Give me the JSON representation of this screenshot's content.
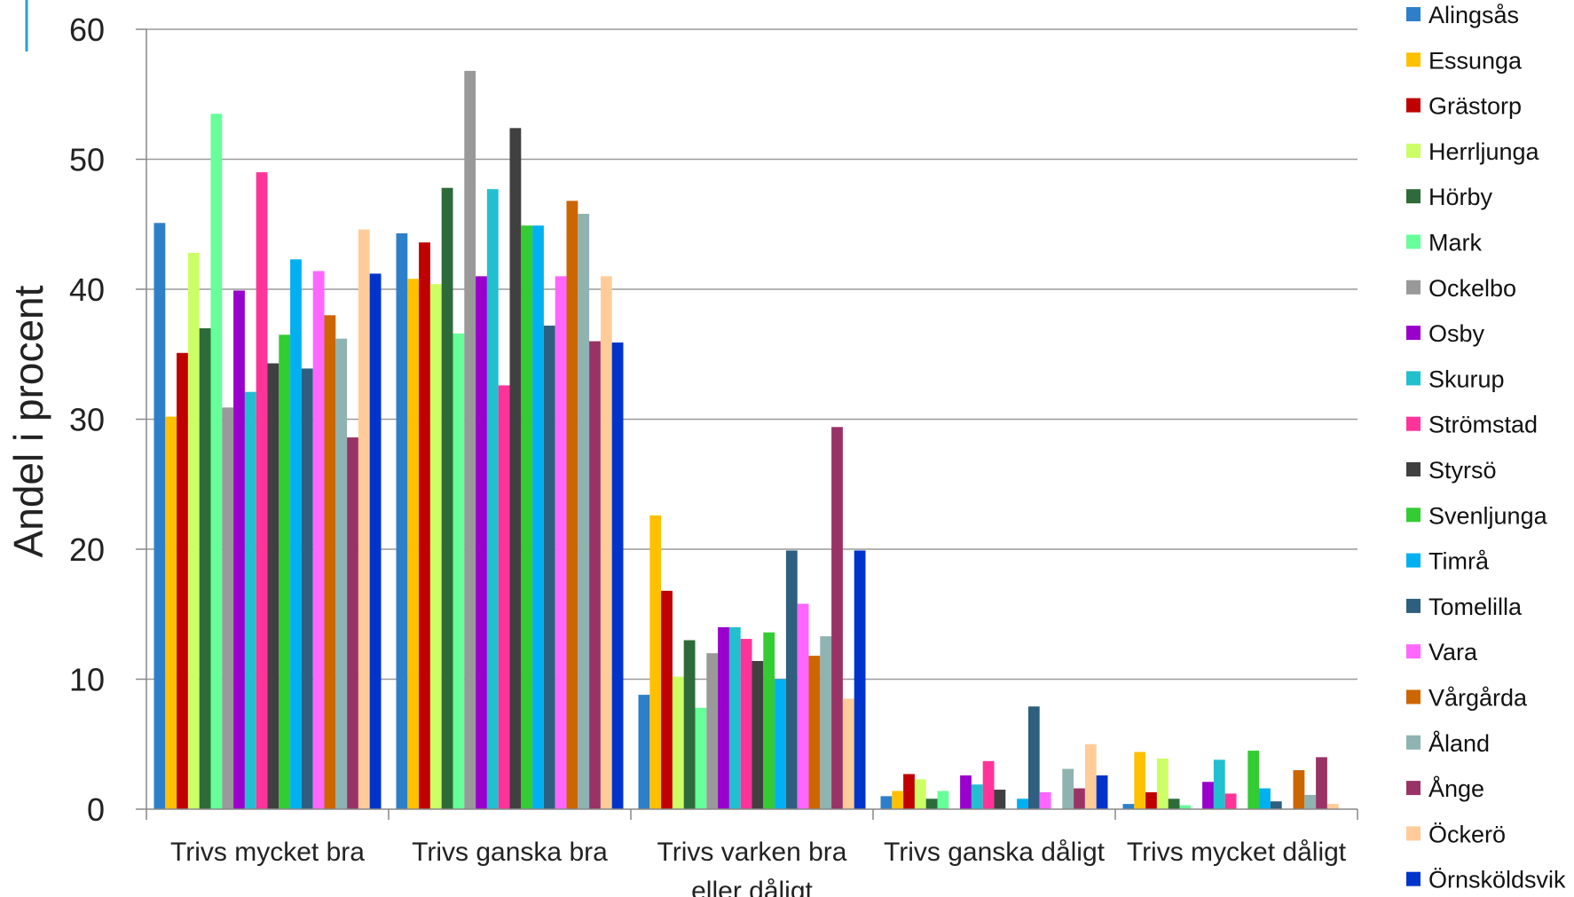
{
  "chart_data": {
    "type": "bar",
    "title": "",
    "xlabel": "",
    "ylabel": "Andel i procent",
    "ylim": [
      0,
      60
    ],
    "yticks": [
      0,
      10,
      20,
      30,
      40,
      50,
      60
    ],
    "grid": true,
    "legend_position": "right",
    "categories": [
      [
        "Trivs mycket bra"
      ],
      [
        "Trivs ganska bra"
      ],
      [
        "Trivs varken bra",
        "eller dåligt"
      ],
      [
        "Trivs ganska dåligt"
      ],
      [
        "Trivs mycket dåligt"
      ]
    ],
    "series": [
      {
        "name": "Alingsås",
        "color": "#2e7fc9",
        "values": [
          45.1,
          44.3,
          8.8,
          1.0,
          0.4
        ]
      },
      {
        "name": "Essunga",
        "color": "#ffc000",
        "values": [
          30.2,
          40.8,
          22.6,
          1.4,
          4.4
        ]
      },
      {
        "name": "Grästorp",
        "color": "#c00000",
        "values": [
          35.1,
          43.6,
          16.8,
          2.7,
          1.3
        ]
      },
      {
        "name": "Herrljunga",
        "color": "#ccff66",
        "values": [
          42.8,
          40.4,
          10.2,
          2.3,
          3.9
        ]
      },
      {
        "name": "Hörby",
        "color": "#2e6b3a",
        "values": [
          37.0,
          47.8,
          13.0,
          0.8,
          0.8
        ]
      },
      {
        "name": "Mark",
        "color": "#66ff99",
        "values": [
          53.5,
          36.6,
          7.8,
          1.4,
          0.3
        ]
      },
      {
        "name": "Ockelbo",
        "color": "#999999",
        "values": [
          30.9,
          56.8,
          12.0,
          0.0,
          0.0
        ]
      },
      {
        "name": "Osby",
        "color": "#9900cc",
        "values": [
          39.9,
          41.0,
          14.0,
          2.6,
          2.1
        ]
      },
      {
        "name": "Skurup",
        "color": "#22bfcf",
        "values": [
          32.1,
          47.7,
          14.0,
          1.9,
          3.8
        ]
      },
      {
        "name": "Strömstad",
        "color": "#ff3399",
        "values": [
          49.0,
          32.6,
          13.1,
          3.7,
          1.2
        ]
      },
      {
        "name": "Styrsö",
        "color": "#404040",
        "values": [
          34.3,
          52.4,
          11.4,
          1.5,
          0.0
        ]
      },
      {
        "name": "Svenljunga",
        "color": "#33cc33",
        "values": [
          36.5,
          44.9,
          13.6,
          0.0,
          4.5
        ]
      },
      {
        "name": "Timrå",
        "color": "#00b0f0",
        "values": [
          42.3,
          44.9,
          10.0,
          0.8,
          1.6
        ]
      },
      {
        "name": "Tomelilla",
        "color": "#2e5f7f",
        "values": [
          33.9,
          37.2,
          19.9,
          7.9,
          0.6
        ]
      },
      {
        "name": "Vara",
        "color": "#ff66ff",
        "values": [
          41.4,
          41.0,
          15.8,
          1.3,
          0.0
        ]
      },
      {
        "name": "Vårgårda",
        "color": "#cc6600",
        "values": [
          38.0,
          46.8,
          11.8,
          0.0,
          3.0
        ]
      },
      {
        "name": "Åland",
        "color": "#8fb3b0",
        "values": [
          36.2,
          45.8,
          13.3,
          3.1,
          1.1
        ]
      },
      {
        "name": "Ånge",
        "color": "#993366",
        "values": [
          28.6,
          36.0,
          29.4,
          1.6,
          4.0
        ]
      },
      {
        "name": "Öckerö",
        "color": "#ffcc99",
        "values": [
          44.6,
          41.0,
          8.5,
          5.0,
          0.4
        ]
      },
      {
        "name": "Örnsköldsvik",
        "color": "#0033cc",
        "values": [
          41.2,
          35.9,
          19.9,
          2.6,
          0.0
        ]
      }
    ]
  }
}
